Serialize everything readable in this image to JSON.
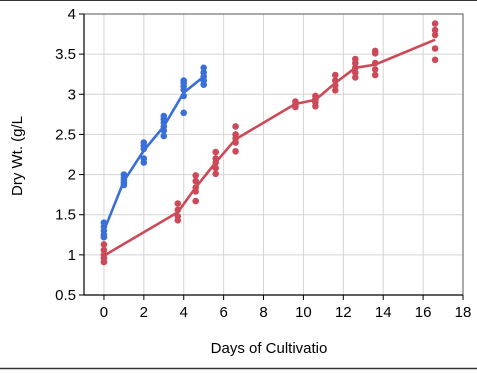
{
  "chart_data": {
    "type": "scatter",
    "title": "",
    "xlabel": "Days of Cultivatio",
    "ylabel": "Dry Wt. (g/L",
    "xlim": [
      -1,
      18
    ],
    "ylim": [
      0.5,
      4
    ],
    "xticks": [
      0,
      2,
      4,
      6,
      8,
      10,
      12,
      14,
      16,
      18
    ],
    "yticks": [
      0.5,
      1,
      1.5,
      2,
      2.5,
      3,
      3.5,
      4
    ],
    "xtick_labels": [
      "0",
      "2",
      "4",
      "6",
      "8",
      "10",
      "12",
      "14",
      "16",
      "18"
    ],
    "ytick_labels": [
      "0.5",
      "1",
      "1.5",
      "2",
      "2.5",
      "3",
      "3.5",
      "4"
    ],
    "grid": true,
    "colors": {
      "blue": "#3a6fd8",
      "red": "#cc4a58",
      "grid": "#d4d4d4",
      "border": "#555555"
    },
    "series": [
      {
        "color": "#3a6fd8",
        "points": [
          [
            0,
            1.4
          ],
          [
            0,
            1.35
          ],
          [
            0,
            1.3
          ],
          [
            0,
            1.25
          ],
          [
            0,
            1.22
          ],
          [
            1,
            2.0
          ],
          [
            1,
            1.96
          ],
          [
            1,
            1.93
          ],
          [
            1,
            1.9
          ],
          [
            1,
            1.87
          ],
          [
            2,
            2.4
          ],
          [
            2,
            2.36
          ],
          [
            2,
            2.32
          ],
          [
            2,
            2.2
          ],
          [
            2,
            2.15
          ],
          [
            3,
            2.73
          ],
          [
            3,
            2.69
          ],
          [
            3,
            2.65
          ],
          [
            3,
            2.6
          ],
          [
            3,
            2.55
          ],
          [
            3,
            2.48
          ],
          [
            4,
            3.17
          ],
          [
            4,
            3.14
          ],
          [
            4,
            3.1
          ],
          [
            4,
            3.06
          ],
          [
            4,
            2.98
          ],
          [
            4,
            2.77
          ],
          [
            5,
            3.33
          ],
          [
            5,
            3.27
          ],
          [
            5,
            3.22
          ],
          [
            5,
            3.17
          ],
          [
            5,
            3.12
          ]
        ],
        "line": [
          [
            0,
            1.3
          ],
          [
            1,
            1.92
          ],
          [
            2,
            2.3
          ],
          [
            3,
            2.6
          ],
          [
            4,
            3.02
          ],
          [
            5,
            3.22
          ]
        ]
      },
      {
        "color": "#cc4a58",
        "points": [
          [
            0,
            1.13
          ],
          [
            0,
            1.06
          ],
          [
            0,
            1.0
          ],
          [
            0,
            0.96
          ],
          [
            0,
            0.91
          ],
          [
            3.7,
            1.64
          ],
          [
            3.7,
            1.56
          ],
          [
            3.7,
            1.48
          ],
          [
            3.7,
            1.43
          ],
          [
            4.6,
            1.99
          ],
          [
            4.6,
            1.92
          ],
          [
            4.6,
            1.84
          ],
          [
            4.6,
            1.79
          ],
          [
            4.6,
            1.67
          ],
          [
            5.6,
            2.28
          ],
          [
            5.6,
            2.2
          ],
          [
            5.6,
            2.15
          ],
          [
            5.6,
            2.08
          ],
          [
            5.6,
            2.01
          ],
          [
            6.6,
            2.6
          ],
          [
            6.6,
            2.5
          ],
          [
            6.6,
            2.45
          ],
          [
            6.6,
            2.4
          ],
          [
            6.6,
            2.29
          ],
          [
            9.6,
            2.91
          ],
          [
            9.6,
            2.87
          ],
          [
            9.6,
            2.84
          ],
          [
            10.6,
            2.98
          ],
          [
            10.6,
            2.94
          ],
          [
            10.6,
            2.9
          ],
          [
            10.6,
            2.85
          ],
          [
            11.6,
            3.24
          ],
          [
            11.6,
            3.17
          ],
          [
            11.6,
            3.11
          ],
          [
            11.6,
            3.05
          ],
          [
            12.6,
            3.44
          ],
          [
            12.6,
            3.39
          ],
          [
            12.6,
            3.33
          ],
          [
            12.6,
            3.27
          ],
          [
            12.6,
            3.21
          ],
          [
            13.6,
            3.54
          ],
          [
            13.6,
            3.51
          ],
          [
            13.6,
            3.39
          ],
          [
            13.6,
            3.31
          ],
          [
            13.6,
            3.24
          ],
          [
            16.6,
            3.88
          ],
          [
            16.6,
            3.8
          ],
          [
            16.6,
            3.74
          ],
          [
            16.6,
            3.57
          ],
          [
            16.6,
            3.43
          ]
        ],
        "line": [
          [
            0,
            0.99
          ],
          [
            3.7,
            1.53
          ],
          [
            4.6,
            1.84
          ],
          [
            5.6,
            2.15
          ],
          [
            6.6,
            2.44
          ],
          [
            9.6,
            2.88
          ],
          [
            10.6,
            2.93
          ],
          [
            11.6,
            3.14
          ],
          [
            12.6,
            3.33
          ],
          [
            13.6,
            3.37
          ],
          [
            16.6,
            3.68
          ]
        ]
      }
    ]
  }
}
